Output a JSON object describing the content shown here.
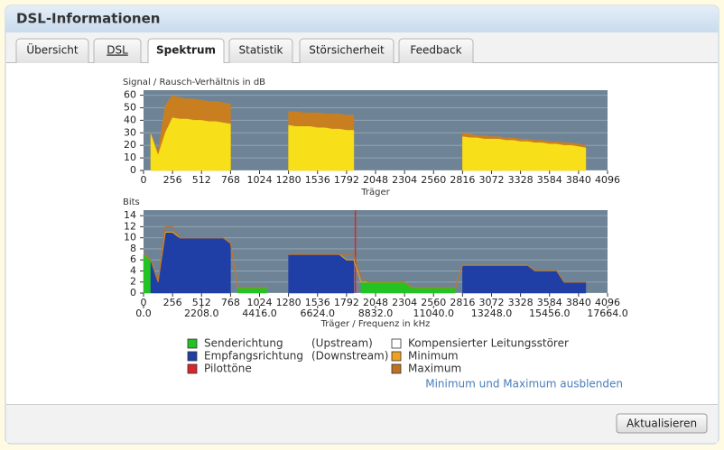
{
  "header": {
    "title": "DSL-Informationen"
  },
  "tabs": [
    "Übersicht",
    "DSL",
    "Spektrum",
    "Statistik",
    "Störsicherheit",
    "Feedback"
  ],
  "active_tab": "Spektrum",
  "chart_data": [
    {
      "type": "area",
      "y_label": "Signal / Rausch-Verhältnis in dB",
      "x_label": "Träger",
      "x": [
        0,
        64,
        128,
        192,
        256,
        320,
        384,
        448,
        512,
        576,
        640,
        704,
        768,
        832,
        896,
        960,
        1024,
        1088,
        1152,
        1216,
        1280,
        1344,
        1408,
        1472,
        1536,
        1600,
        1664,
        1728,
        1792,
        1856,
        1920,
        1984,
        2048,
        2112,
        2176,
        2240,
        2304,
        2368,
        2432,
        2496,
        2560,
        2624,
        2688,
        2752,
        2816,
        2880,
        2944,
        3008,
        3072,
        3136,
        3200,
        3264,
        3328,
        3392,
        3456,
        3520,
        3584,
        3648,
        3712,
        3776,
        3840,
        3904,
        3968,
        4032,
        4096
      ],
      "xlim": [
        0,
        4096
      ],
      "xticks": [
        0,
        256,
        512,
        768,
        1024,
        1280,
        1536,
        1792,
        2048,
        2304,
        2560,
        2816,
        3072,
        3328,
        3584,
        3840,
        4096
      ],
      "ylim": [
        0,
        64
      ],
      "yticks": [
        0,
        10,
        20,
        30,
        40,
        50,
        60
      ],
      "grid": true,
      "series": [
        {
          "color": "#c97f1f",
          "kind": "area",
          "values": [
            null,
            30,
            15,
            52,
            60,
            58,
            57,
            57,
            56,
            55,
            55,
            54,
            53,
            null,
            null,
            null,
            null,
            null,
            null,
            null,
            47,
            47,
            46,
            46,
            46,
            45,
            45,
            45,
            44,
            44,
            null,
            null,
            null,
            null,
            null,
            null,
            null,
            null,
            null,
            null,
            null,
            null,
            null,
            null,
            30,
            29,
            28,
            28,
            27,
            27,
            26,
            26,
            25,
            25,
            24,
            24,
            23,
            23,
            22,
            22,
            21,
            20,
            null,
            null,
            null
          ]
        },
        {
          "color": "#f7df1a",
          "kind": "area",
          "values": [
            null,
            29,
            12,
            30,
            42,
            41,
            41,
            40,
            40,
            39,
            39,
            38,
            37,
            null,
            null,
            null,
            null,
            null,
            null,
            null,
            36,
            35,
            35,
            35,
            34,
            34,
            33,
            33,
            32,
            32,
            null,
            null,
            null,
            null,
            null,
            null,
            null,
            null,
            null,
            null,
            null,
            null,
            null,
            null,
            27,
            26,
            26,
            25,
            25,
            25,
            24,
            24,
            23,
            23,
            22,
            22,
            21,
            21,
            20,
            20,
            19,
            18,
            null,
            null,
            null
          ]
        }
      ]
    },
    {
      "type": "area",
      "y_label": "Bits",
      "x_label": "Träger / Frequenz in kHz",
      "x": [
        0,
        64,
        128,
        192,
        256,
        320,
        384,
        448,
        512,
        576,
        640,
        704,
        768,
        832,
        896,
        960,
        1024,
        1088,
        1152,
        1216,
        1280,
        1344,
        1408,
        1472,
        1536,
        1600,
        1664,
        1728,
        1792,
        1856,
        1920,
        1984,
        2048,
        2112,
        2176,
        2240,
        2304,
        2368,
        2432,
        2496,
        2560,
        2624,
        2688,
        2752,
        2816,
        2880,
        2944,
        3008,
        3072,
        3136,
        3200,
        3264,
        3328,
        3392,
        3456,
        3520,
        3584,
        3648,
        3712,
        3776,
        3840,
        3904,
        3968,
        4032,
        4096
      ],
      "xlim": [
        0,
        4096
      ],
      "xticks": [
        0,
        256,
        512,
        768,
        1024,
        1280,
        1536,
        1792,
        2048,
        2304,
        2560,
        2816,
        3072,
        3328,
        3584,
        3840,
        4096
      ],
      "x2lim": [
        0,
        17664
      ],
      "x2ticks": [
        {
          "value": 0,
          "label": "0.0"
        },
        {
          "value": 2208,
          "label": "2208.0"
        },
        {
          "value": 4416,
          "label": "4416.0"
        },
        {
          "value": 6624,
          "label": "6624.0"
        },
        {
          "value": 8832,
          "label": "8832.0"
        },
        {
          "value": 11040,
          "label": "11040.0"
        },
        {
          "value": 13248,
          "label": "13248.0"
        },
        {
          "value": 15456,
          "label": "15456.0"
        },
        {
          "value": 17664,
          "label": "17664.0"
        }
      ],
      "ylim": [
        0,
        15
      ],
      "yticks": [
        0,
        2,
        4,
        6,
        8,
        10,
        12,
        14
      ],
      "grid": true,
      "series": [
        {
          "name": "Senderichtung",
          "note": "(Upstream)",
          "color": "#22c322",
          "kind": "area",
          "values": [
            7,
            6,
            null,
            null,
            null,
            null,
            null,
            null,
            null,
            null,
            null,
            null,
            null,
            1,
            1,
            1,
            1,
            1,
            null,
            null,
            null,
            null,
            null,
            null,
            null,
            null,
            null,
            null,
            null,
            null,
            2,
            2,
            2,
            2,
            2,
            2,
            2,
            1,
            1,
            1,
            1,
            1,
            1,
            1,
            null,
            null,
            null,
            null,
            null,
            null,
            null,
            null,
            null,
            null,
            null,
            null,
            null,
            null,
            null,
            null,
            null,
            null,
            null,
            null,
            null
          ]
        },
        {
          "name": "Empfangsrichtung",
          "note": "(Downstream)",
          "color": "#1f3fa6",
          "kind": "area",
          "values": [
            null,
            6,
            2,
            11,
            11,
            10,
            10,
            10,
            10,
            10,
            10,
            10,
            9,
            null,
            null,
            null,
            null,
            null,
            null,
            null,
            7,
            7,
            7,
            7,
            7,
            7,
            7,
            7,
            6,
            6,
            null,
            null,
            null,
            null,
            null,
            null,
            null,
            null,
            null,
            null,
            null,
            null,
            null,
            null,
            5,
            5,
            5,
            5,
            5,
            5,
            5,
            5,
            5,
            5,
            4,
            4,
            4,
            4,
            2,
            2,
            2,
            2,
            null,
            null,
            null
          ]
        },
        {
          "name": "Pilottöne",
          "color": "#d8262b",
          "kind": "spike",
          "x": [
            1870
          ],
          "values": [
            15
          ]
        },
        {
          "name": "Kompensierter Leitungsstörer",
          "color": "#ffffff",
          "kind": "line",
          "x": [],
          "values": []
        },
        {
          "name": "Minimum",
          "color": "#f0a020",
          "kind": "line",
          "values": [
            7,
            6,
            2,
            11,
            11,
            10,
            10,
            10,
            10,
            10,
            10,
            10,
            9,
            1,
            1,
            1,
            1,
            1,
            null,
            null,
            7,
            7,
            7,
            7,
            7,
            7,
            7,
            7,
            6,
            6,
            2,
            2,
            2,
            2,
            2,
            2,
            2,
            1,
            1,
            1,
            1,
            1,
            1,
            1,
            5,
            5,
            5,
            5,
            5,
            5,
            5,
            5,
            5,
            5,
            4,
            4,
            4,
            4,
            2,
            2,
            2,
            2,
            null,
            null,
            null
          ]
        },
        {
          "name": "Maximum",
          "color": "#c07020",
          "kind": "line",
          "values": [
            7,
            6,
            2,
            12,
            12,
            10,
            10,
            10,
            10,
            10,
            10,
            10,
            9,
            1,
            1,
            1,
            1,
            1,
            null,
            null,
            7,
            7,
            7,
            7,
            7,
            7,
            7,
            7,
            7,
            7,
            3,
            2,
            2,
            2,
            2,
            2,
            2,
            1,
            1,
            1,
            1,
            1,
            1,
            1,
            5,
            5,
            5,
            5,
            5,
            5,
            5,
            5,
            5,
            5,
            4,
            4,
            4,
            4,
            2,
            2,
            2,
            2,
            null,
            null,
            null
          ]
        }
      ]
    }
  ],
  "toggle_link": "Minimum und Maximum ausblenden",
  "button": "Aktualisieren"
}
